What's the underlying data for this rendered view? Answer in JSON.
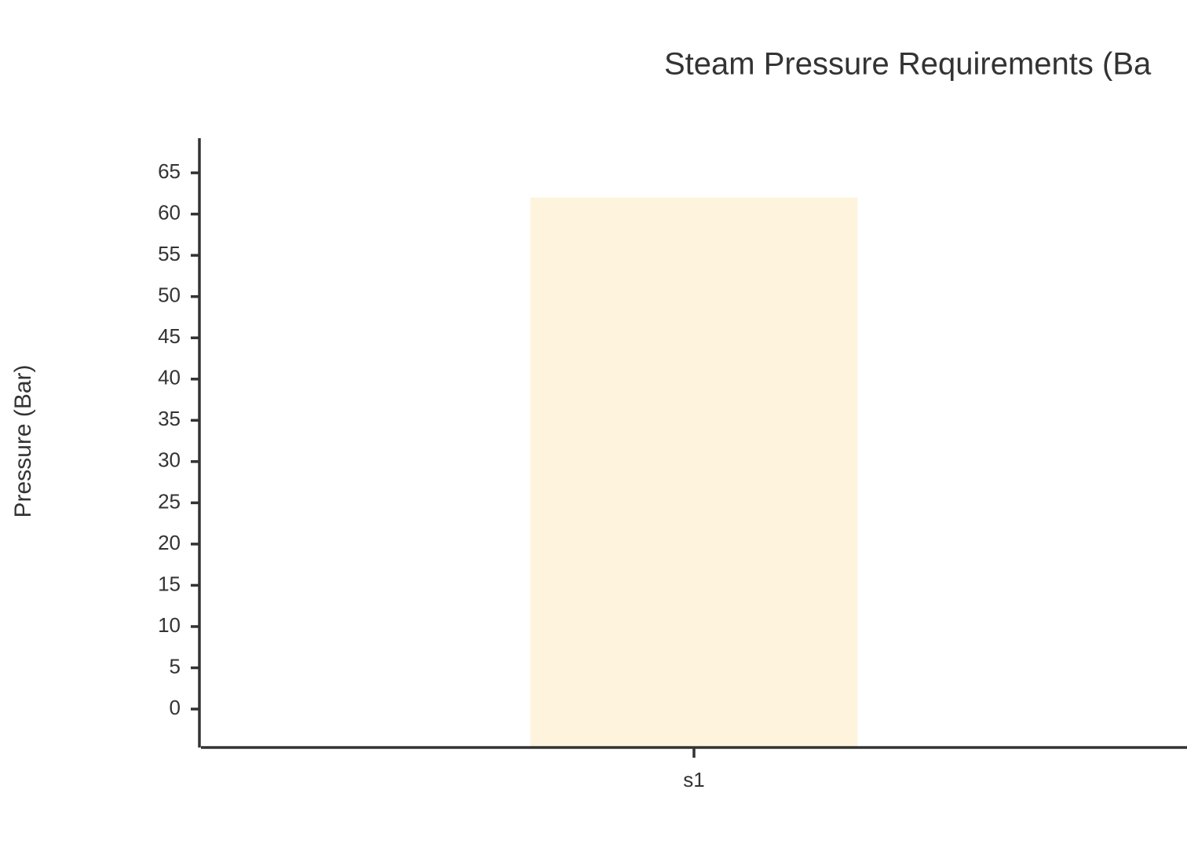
{
  "chart_data": {
    "type": "bar",
    "title": "Steam Pressure Requirements (Ba",
    "ylabel": "Pressure (Bar)",
    "categories": [
      "s1"
    ],
    "values": [
      62
    ],
    "color": "#fef3dd",
    "ylim": [
      -4.66,
      69.2
    ],
    "yticks": [
      0,
      5,
      10,
      15,
      20,
      25,
      30,
      35,
      40,
      45,
      50,
      55,
      60,
      65
    ]
  }
}
